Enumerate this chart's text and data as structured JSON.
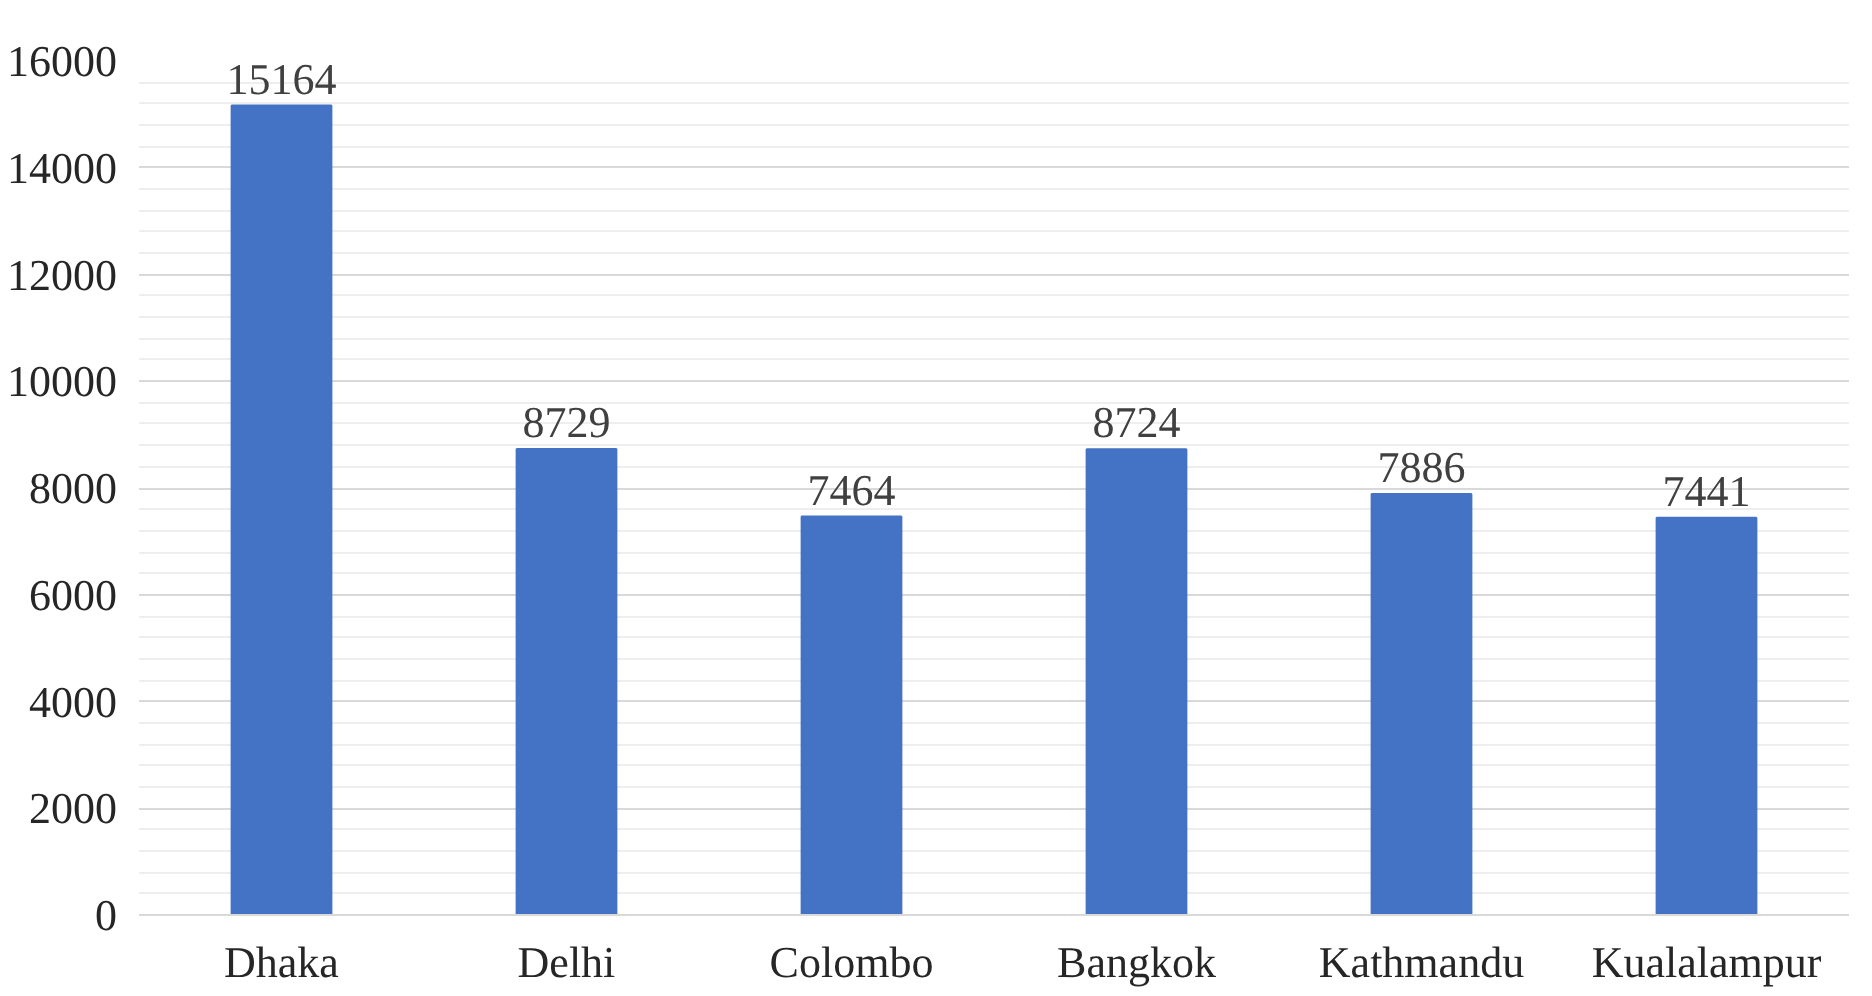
{
  "chart_data": {
    "type": "bar",
    "categories": [
      "Dhaka",
      "Delhi",
      "Colombo",
      "Bangkok",
      "Kathmandu",
      "Kualalampur"
    ],
    "values": [
      15164,
      8729,
      7464,
      8724,
      7886,
      7441
    ],
    "color": "#4472c4",
    "ylim": [
      0,
      16000
    ],
    "yticks": [
      0,
      2000,
      4000,
      6000,
      8000,
      10000,
      12000,
      14000,
      16000
    ],
    "grid": "y",
    "data_labels": true
  }
}
